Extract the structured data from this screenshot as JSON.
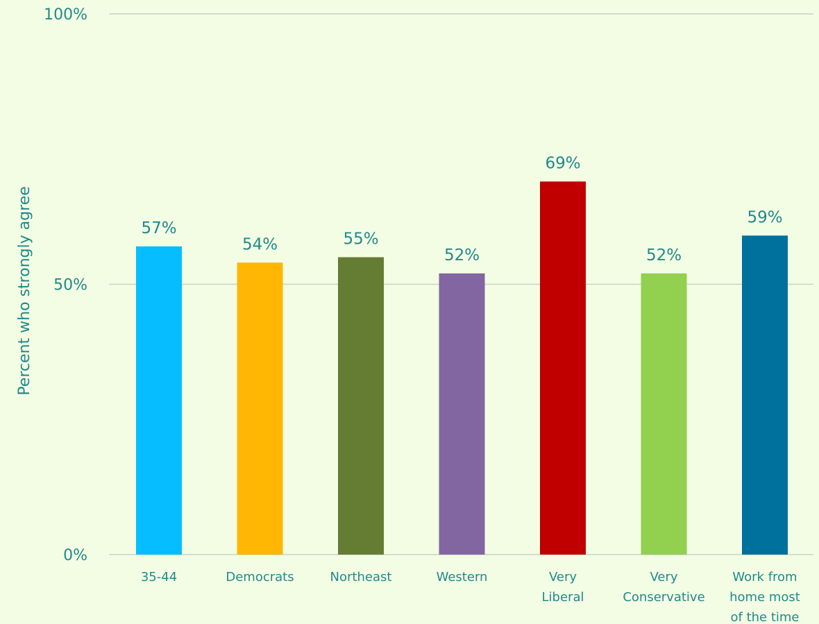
{
  "chart_data": {
    "type": "bar",
    "title": "",
    "xlabel": "",
    "ylabel": "Percent who strongly agree",
    "ylim": [
      0,
      100
    ],
    "y_ticks": [
      0,
      50,
      100
    ],
    "y_tick_labels": [
      "0%",
      "50%",
      "100%"
    ],
    "grid": true,
    "legend": "none",
    "categories": [
      [
        "35-44"
      ],
      [
        "Democrats"
      ],
      [
        "Northeast"
      ],
      [
        "Western"
      ],
      [
        "Very",
        "Liberal"
      ],
      [
        "Very",
        "Conservative"
      ],
      [
        "Work from",
        "home most",
        "of the time"
      ]
    ],
    "values": [
      57,
      54,
      55,
      52,
      69,
      52,
      59
    ],
    "value_labels": [
      "57%",
      "54%",
      "55%",
      "52%",
      "69%",
      "52%",
      "59%"
    ],
    "colors": [
      "#06bdff",
      "#ffb703",
      "#657d33",
      "#8166a1",
      "#c00000",
      "#92d050",
      "#00719c"
    ]
  }
}
